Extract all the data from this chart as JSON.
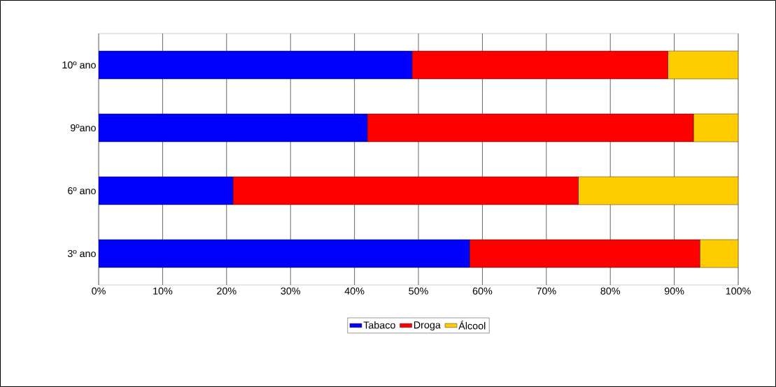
{
  "chart_data": {
    "type": "bar",
    "orientation": "horizontal",
    "stacked": true,
    "categories": [
      "10º ano",
      "9ºano",
      "6º ano",
      "3º ano"
    ],
    "series": [
      {
        "name": "Tabaco",
        "color": "#0000ff",
        "values": [
          49,
          42,
          21,
          58
        ]
      },
      {
        "name": "Droga",
        "color": "#ff0000",
        "values": [
          40,
          51,
          54,
          36
        ]
      },
      {
        "name": "Álcool",
        "color": "#ffcc00",
        "values": [
          11,
          7,
          25,
          6
        ]
      }
    ],
    "xlim": [
      0,
      100
    ],
    "xticks": [
      {
        "value": 0,
        "label": "0%"
      },
      {
        "value": 10,
        "label": "10%"
      },
      {
        "value": 20,
        "label": "20%"
      },
      {
        "value": 30,
        "label": "30%"
      },
      {
        "value": 40,
        "label": "40%"
      },
      {
        "value": 50,
        "label": "50%"
      },
      {
        "value": 60,
        "label": "60%"
      },
      {
        "value": 70,
        "label": "70%"
      },
      {
        "value": 80,
        "label": "80%"
      },
      {
        "value": 90,
        "label": "90%"
      },
      {
        "value": 100,
        "label": "100%"
      }
    ],
    "grid": "x",
    "legend": "bottom"
  }
}
